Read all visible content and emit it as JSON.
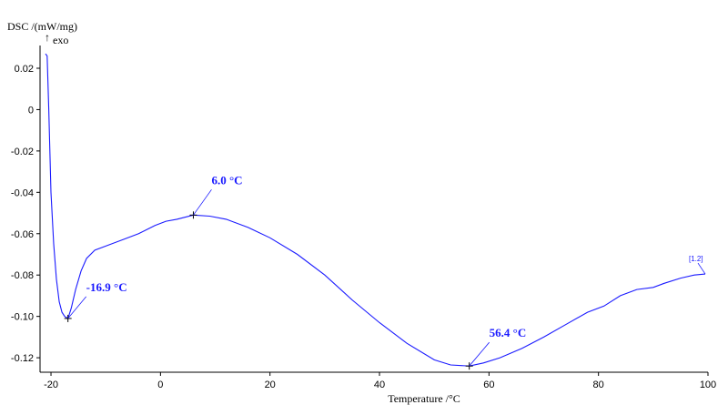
{
  "chart_data": {
    "type": "line",
    "ylabel": "DSC /(mW/mg)",
    "ylabel_sub": "exo",
    "xlabel": "Temperature /°C",
    "xlim": [
      -22,
      100
    ],
    "ylim": [
      -0.127,
      0.031
    ],
    "x_ticks": [
      -20,
      0,
      20,
      40,
      60,
      80,
      100
    ],
    "y_ticks": [
      0.02,
      0,
      -0.02,
      -0.04,
      -0.06,
      -0.08,
      -0.1,
      -0.12
    ],
    "y_tick_labels": [
      "0.02",
      "0",
      "-0.02",
      "-0.04",
      "-0.06",
      "-0.08",
      "-0.10",
      "-0.12"
    ],
    "grid": false,
    "line_color": "#1a1aff",
    "curve_label": "[1.2]",
    "series": [
      {
        "x": [
          -21.0,
          -20.7,
          -20.4,
          -20.0,
          -19.5,
          -19.0,
          -18.5,
          -18.0,
          -17.5,
          -16.9,
          -16.3,
          -15.5,
          -14.5,
          -13.5,
          -12.0,
          -10.0,
          -7.0,
          -4.0,
          -1.0,
          1.0,
          3.0,
          6.0,
          9.0,
          12.0,
          16.0,
          20.0,
          25.0,
          30.0,
          35.0,
          40.0,
          45.0,
          50.0,
          53.0,
          56.4,
          59.0,
          62.0,
          66.0,
          70.0,
          74.0,
          78.0,
          81.0,
          84.0,
          87.0,
          90.0,
          92.0,
          95.0,
          97.5,
          99.5
        ],
        "y": [
          0.027,
          0.026,
          0.0,
          -0.04,
          -0.065,
          -0.082,
          -0.093,
          -0.098,
          -0.1,
          -0.101,
          -0.096,
          -0.087,
          -0.078,
          -0.072,
          -0.068,
          -0.066,
          -0.063,
          -0.06,
          -0.056,
          -0.054,
          -0.053,
          -0.051,
          -0.0515,
          -0.053,
          -0.057,
          -0.062,
          -0.07,
          -0.08,
          -0.092,
          -0.103,
          -0.113,
          -0.121,
          -0.1235,
          -0.124,
          -0.1225,
          -0.12,
          -0.1155,
          -0.11,
          -0.104,
          -0.098,
          -0.095,
          -0.09,
          -0.087,
          -0.086,
          -0.084,
          -0.0815,
          -0.08,
          -0.0795
        ]
      }
    ],
    "annotations": [
      {
        "x": -16.9,
        "y": -0.101,
        "label": "-16.9 °C",
        "dx": 20,
        "dy": -30
      },
      {
        "x": 6.0,
        "y": -0.051,
        "label": "6.0 °C",
        "dx": 20,
        "dy": -34
      },
      {
        "x": 56.4,
        "y": -0.124,
        "label": "56.4 °C",
        "dx": 22,
        "dy": -32
      }
    ]
  }
}
